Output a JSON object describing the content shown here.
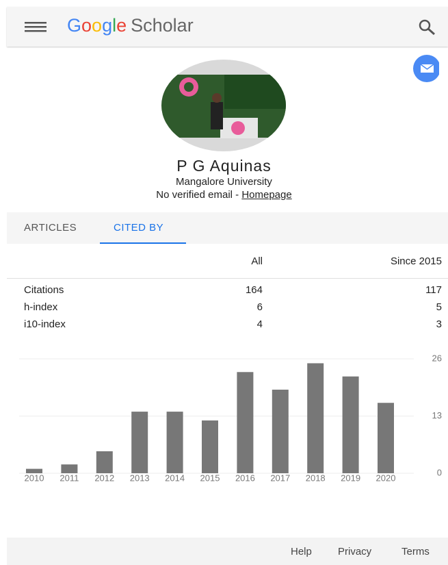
{
  "header": {
    "logo_google": "Google",
    "logo_scholar": "Scholar"
  },
  "profile": {
    "name": "P G Aquinas",
    "affiliation": "Mangalore University",
    "email_status": "No verified email - ",
    "homepage": "Homepage"
  },
  "tabs": [
    "ARTICLES",
    "CITED BY"
  ],
  "table": {
    "columns": [
      "All",
      "Since 2015"
    ],
    "rows": [
      [
        "Citations",
        "164",
        "117"
      ],
      [
        "h-index",
        "6",
        "5"
      ],
      [
        "i10-index",
        "4",
        "3"
      ]
    ]
  },
  "chart_data": {
    "type": "bar",
    "categories": [
      "2010",
      "2011",
      "2012",
      "2013",
      "2014",
      "2015",
      "2016",
      "2017",
      "2018",
      "2019",
      "2020"
    ],
    "values": [
      1,
      2,
      5,
      14,
      14,
      12,
      23,
      19,
      25,
      22,
      16
    ],
    "color": "#777777",
    "ylim": [
      0,
      26
    ],
    "yticks": [
      0,
      13,
      26
    ],
    "grid": true
  },
  "footer": {
    "links": [
      "Help",
      "Privacy",
      "Terms"
    ]
  }
}
